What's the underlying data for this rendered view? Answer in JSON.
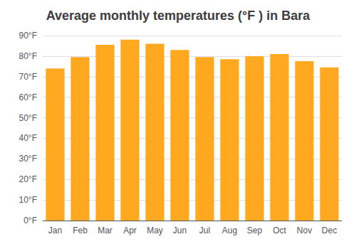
{
  "chart_data": {
    "type": "bar",
    "title": "Average monthly temperatures (°F ) in Bara",
    "categories": [
      "Jan",
      "Feb",
      "Mar",
      "Apr",
      "May",
      "Jun",
      "Jul",
      "Aug",
      "Sep",
      "Oct",
      "Nov",
      "Dec"
    ],
    "values": [
      74,
      79.5,
      85.5,
      88,
      86,
      83,
      79.5,
      78.5,
      80,
      81,
      77.5,
      74.5
    ],
    "color": "#FFA820",
    "ylim": [
      0,
      90
    ],
    "yticks": [
      {
        "value": 0,
        "label": "0°F"
      },
      {
        "value": 10,
        "label": "10°F"
      },
      {
        "value": 20,
        "label": "20°F"
      },
      {
        "value": 30,
        "label": "30°F"
      },
      {
        "value": 40,
        "label": "40°F"
      },
      {
        "value": 50,
        "label": "50°F"
      },
      {
        "value": 60,
        "label": "60°F"
      },
      {
        "value": 70,
        "label": "70°F"
      },
      {
        "value": 80,
        "label": "80°F"
      },
      {
        "value": 90,
        "label": "90°F"
      }
    ],
    "grid": true
  }
}
